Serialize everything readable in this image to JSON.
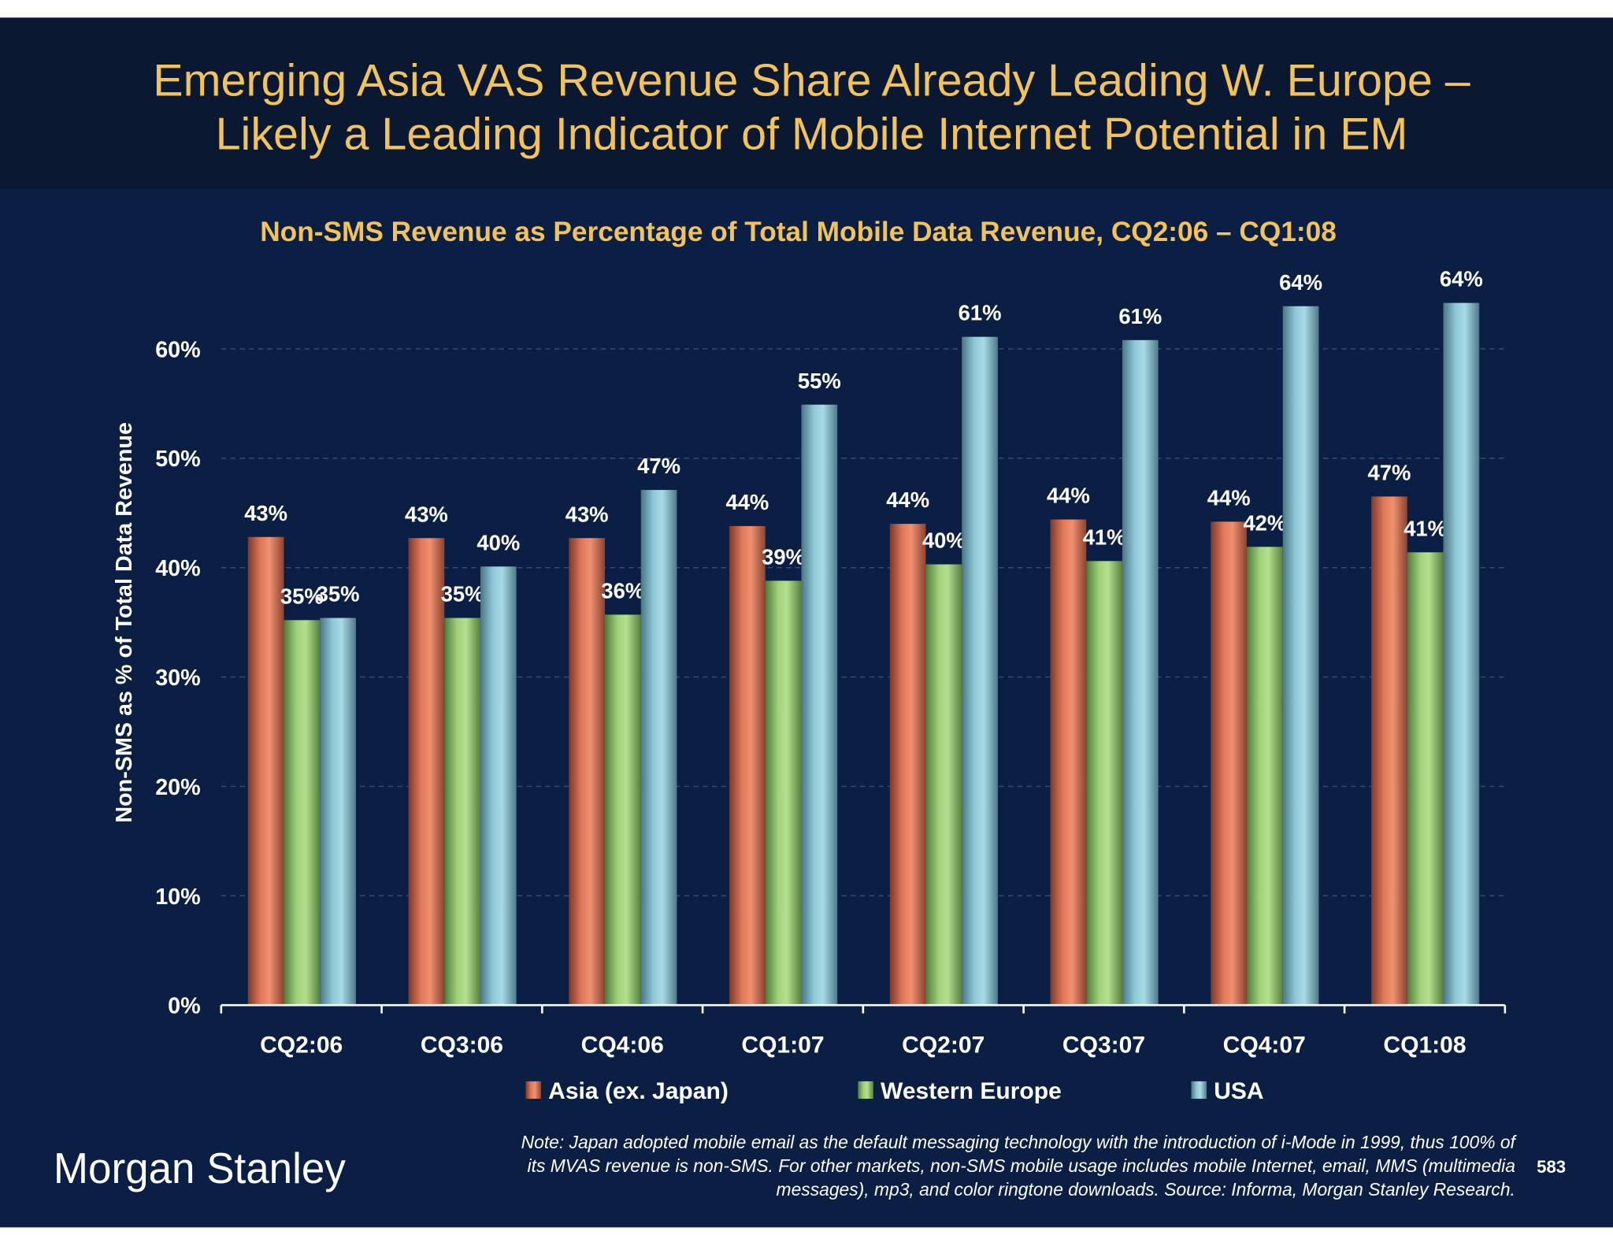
{
  "header": {
    "title_line1": "Emerging Asia VAS Revenue Share Already Leading W. Europe –",
    "title_line2": "Likely a Leading Indicator of Mobile Internet Potential in EM"
  },
  "colors": {
    "header_bg": "#0a1831",
    "body_bg": "#0b1e44",
    "title": "#f2c35a",
    "asia": "#e0785a",
    "western_europe": "#9fd07a",
    "usa": "#8fc8d8"
  },
  "chart_data": {
    "type": "bar",
    "title": "Non-SMS Revenue as Percentage of Total Mobile Data Revenue, CQ2:06 – CQ1:08",
    "xlabel": "",
    "ylabel": "Non-SMS as % of Total Data Revenue",
    "ylim": [
      0,
      60
    ],
    "yticks": [
      "0%",
      "10%",
      "20%",
      "30%",
      "40%",
      "50%",
      "60%"
    ],
    "grid": true,
    "legend_position": "bottom",
    "categories": [
      "CQ2:06",
      "CQ3:06",
      "CQ4:06",
      "CQ1:07",
      "CQ2:07",
      "CQ3:07",
      "CQ4:07",
      "CQ1:08"
    ],
    "series": [
      {
        "name": "Asia (ex. Japan)",
        "values": [
          42.8,
          42.7,
          42.7,
          43.8,
          44.0,
          44.4,
          44.2,
          46.5
        ],
        "labels": [
          "43%",
          "43%",
          "43%",
          "44%",
          "44%",
          "44%",
          "44%",
          "47%"
        ]
      },
      {
        "name": "Western Europe",
        "values": [
          35.2,
          35.4,
          35.7,
          38.8,
          40.3,
          40.6,
          41.9,
          41.4
        ],
        "labels": [
          "35%",
          "35%",
          "36%",
          "39%",
          "40%",
          "41%",
          "42%",
          "41%"
        ]
      },
      {
        "name": "USA",
        "values": [
          35.4,
          40.1,
          47.1,
          54.9,
          61.1,
          60.8,
          63.9,
          64.2
        ],
        "labels": [
          "35%",
          "40%",
          "47%",
          "55%",
          "61%",
          "61%",
          "64%",
          "64%"
        ]
      }
    ]
  },
  "footer": {
    "logo": "Morgan Stanley",
    "note_line1": "Note: Japan adopted mobile email as the default messaging technology with the introduction of i-Mode in 1999, thus 100% of",
    "note_line2": "its MVAS revenue is non-SMS. For other markets, non-SMS mobile usage includes mobile Internet, email, MMS (multimedia",
    "note_line3": "messages), mp3, and color ringtone downloads. Source: Informa, Morgan Stanley Research.",
    "page_number": "583"
  }
}
